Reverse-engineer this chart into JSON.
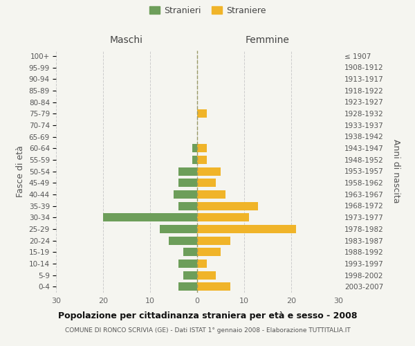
{
  "age_groups": [
    "0-4",
    "5-9",
    "10-14",
    "15-19",
    "20-24",
    "25-29",
    "30-34",
    "35-39",
    "40-44",
    "45-49",
    "50-54",
    "55-59",
    "60-64",
    "65-69",
    "70-74",
    "75-79",
    "80-84",
    "85-89",
    "90-94",
    "95-99",
    "100+"
  ],
  "birth_years": [
    "2003-2007",
    "1998-2002",
    "1993-1997",
    "1988-1992",
    "1983-1987",
    "1978-1982",
    "1973-1977",
    "1968-1972",
    "1963-1967",
    "1958-1962",
    "1953-1957",
    "1948-1952",
    "1943-1947",
    "1938-1942",
    "1933-1937",
    "1928-1932",
    "1923-1927",
    "1918-1922",
    "1913-1917",
    "1908-1912",
    "≤ 1907"
  ],
  "maschi": [
    4,
    3,
    4,
    3,
    6,
    8,
    20,
    4,
    5,
    4,
    4,
    1,
    1,
    0,
    0,
    0,
    0,
    0,
    0,
    0,
    0
  ],
  "femmine": [
    7,
    4,
    2,
    5,
    7,
    21,
    11,
    13,
    6,
    4,
    5,
    2,
    2,
    0,
    0,
    2,
    0,
    0,
    0,
    0,
    0
  ],
  "maschi_color": "#6d9e5a",
  "femmine_color": "#f0b429",
  "background_color": "#f5f5f0",
  "grid_color": "#cccccc",
  "title": "Popolazione per cittadinanza straniera per età e sesso - 2008",
  "subtitle": "COMUNE DI RONCO SCRIVIA (GE) - Dati ISTAT 1° gennaio 2008 - Elaborazione TUTTITALIA.IT",
  "xlabel_left": "Maschi",
  "xlabel_right": "Femmine",
  "ylabel_left": "Fasce di età",
  "ylabel_right": "Anni di nascita",
  "legend_maschi": "Stranieri",
  "legend_femmine": "Straniere",
  "xlim": 30
}
